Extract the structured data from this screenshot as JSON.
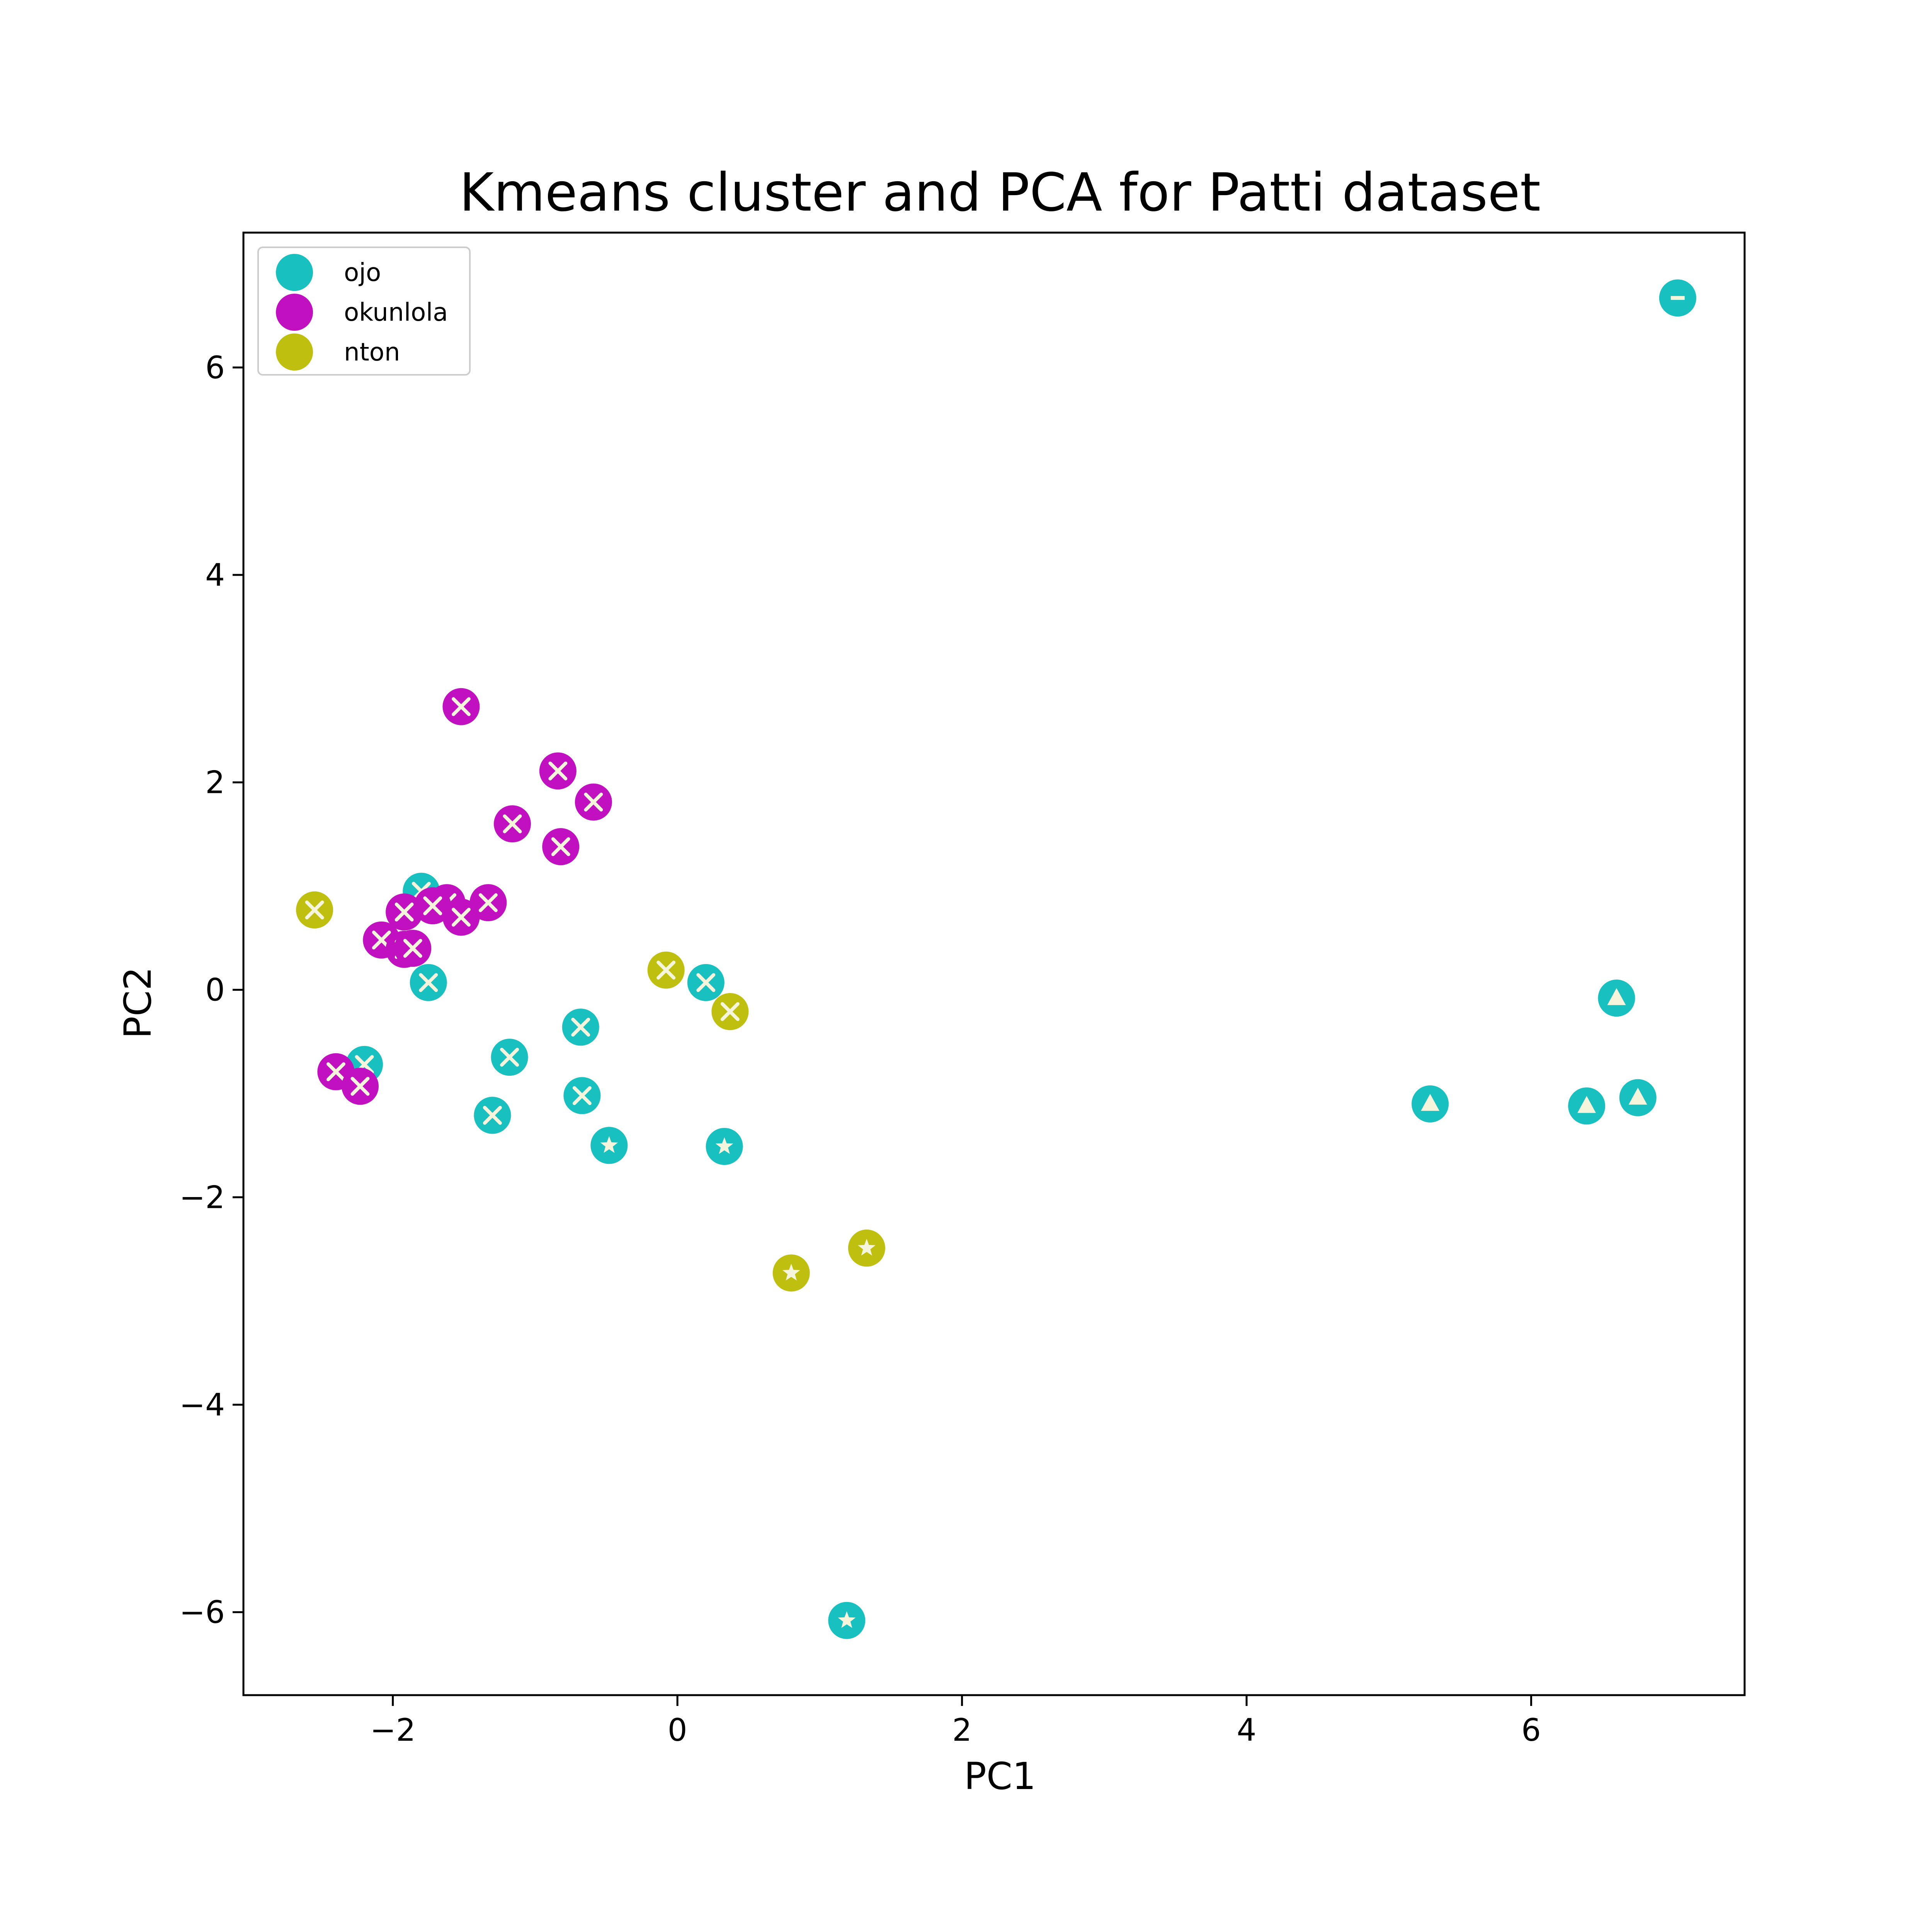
{
  "chart_data": {
    "type": "scatter",
    "title": "Kmeans cluster and PCA for Patti dataset",
    "xlabel": "PC1",
    "ylabel": "PC2",
    "xlim": [
      -3.05,
      7.5
    ],
    "ylim": [
      -6.8,
      7.3
    ],
    "xticks": [
      -2,
      0,
      2,
      4,
      6
    ],
    "yticks": [
      -6,
      -4,
      -2,
      0,
      2,
      4,
      6
    ],
    "legend_placement": "top-left",
    "grid": false,
    "colors": {
      "ojo": "#18c0c0",
      "okunlola": "#c010c0",
      "nton": "#bfbf10",
      "inner_marker": "#f5f5dc"
    },
    "series": [
      {
        "name": "ojo",
        "color": "#18c0c0",
        "points": [
          {
            "x": -1.8,
            "y": 0.95,
            "inner": "x"
          },
          {
            "x": -1.75,
            "y": 0.07,
            "inner": "x"
          },
          {
            "x": -2.2,
            "y": -0.72,
            "inner": "x"
          },
          {
            "x": -1.18,
            "y": -0.65,
            "inner": "x"
          },
          {
            "x": -0.68,
            "y": -0.36,
            "inner": "x"
          },
          {
            "x": -0.67,
            "y": -1.02,
            "inner": "x"
          },
          {
            "x": -1.3,
            "y": -1.21,
            "inner": "x"
          },
          {
            "x": -0.48,
            "y": -1.5,
            "inner": "star"
          },
          {
            "x": 0.2,
            "y": 0.07,
            "inner": "x"
          },
          {
            "x": 0.33,
            "y": -1.51,
            "inner": "star"
          },
          {
            "x": 1.19,
            "y": -6.08,
            "inner": "star"
          },
          {
            "x": 5.29,
            "y": -1.1,
            "inner": "triangle"
          },
          {
            "x": 6.39,
            "y": -1.12,
            "inner": "triangle"
          },
          {
            "x": 6.6,
            "y": -0.08,
            "inner": "triangle"
          },
          {
            "x": 6.75,
            "y": -1.04,
            "inner": "triangle"
          },
          {
            "x": 7.03,
            "y": 6.67,
            "inner": "minus"
          }
        ]
      },
      {
        "name": "okunlola",
        "color": "#c010c0",
        "points": [
          {
            "x": -1.52,
            "y": 2.73,
            "inner": "x"
          },
          {
            "x": -0.84,
            "y": 2.11,
            "inner": "x"
          },
          {
            "x": -0.59,
            "y": 1.81,
            "inner": "x"
          },
          {
            "x": -1.16,
            "y": 1.6,
            "inner": "x"
          },
          {
            "x": -0.82,
            "y": 1.38,
            "inner": "x"
          },
          {
            "x": -1.33,
            "y": 0.84,
            "inner": "x"
          },
          {
            "x": -1.62,
            "y": 0.84,
            "inner": "x"
          },
          {
            "x": -1.72,
            "y": 0.81,
            "inner": "x"
          },
          {
            "x": -1.92,
            "y": 0.75,
            "inner": "x"
          },
          {
            "x": -1.52,
            "y": 0.7,
            "inner": "x"
          },
          {
            "x": -2.08,
            "y": 0.48,
            "inner": "x"
          },
          {
            "x": -1.92,
            "y": 0.39,
            "inner": "x"
          },
          {
            "x": -1.86,
            "y": 0.4,
            "inner": "x"
          },
          {
            "x": -2.4,
            "y": -0.79,
            "inner": "x"
          },
          {
            "x": -2.23,
            "y": -0.93,
            "inner": "x"
          }
        ]
      },
      {
        "name": "nton",
        "color": "#bfbf10",
        "points": [
          {
            "x": -2.55,
            "y": 0.77,
            "inner": "x"
          },
          {
            "x": -0.08,
            "y": 0.19,
            "inner": "x"
          },
          {
            "x": 0.37,
            "y": -0.21,
            "inner": "x"
          },
          {
            "x": 1.33,
            "y": -2.49,
            "inner": "star"
          },
          {
            "x": 0.8,
            "y": -2.73,
            "inner": "star"
          }
        ]
      }
    ]
  }
}
